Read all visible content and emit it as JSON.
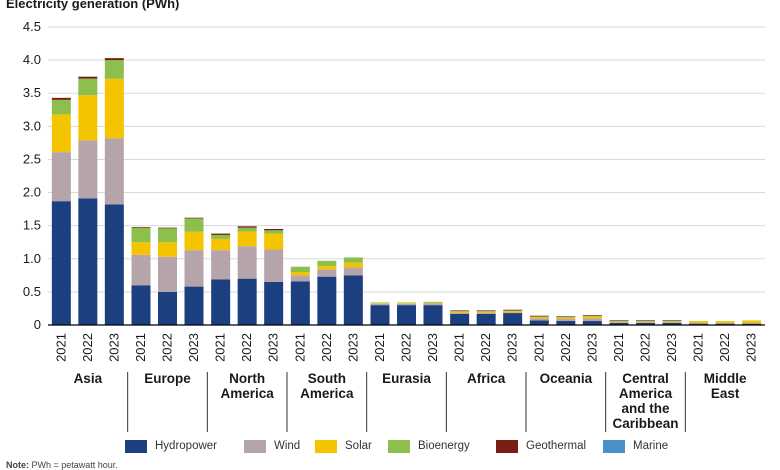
{
  "chart_data": {
    "type": "bar",
    "stacked": true,
    "title": "Electricity generation (PWh)",
    "ylim": [
      0,
      4.5
    ],
    "yticks": [
      "0",
      "0.5",
      "1.0",
      "1.5",
      "2.0",
      "2.5",
      "3.0",
      "3.5",
      "4.0",
      "4.5"
    ],
    "grid": true,
    "legend_position": "bottom",
    "groups": [
      {
        "name": "Asia",
        "years": [
          "2021",
          "2022",
          "2023"
        ]
      },
      {
        "name": "Europe",
        "years": [
          "2021",
          "2022",
          "2023"
        ]
      },
      {
        "name": "North America",
        "years": [
          "2021",
          "2022",
          "2023"
        ]
      },
      {
        "name": "South America",
        "years": [
          "2021",
          "2022",
          "2023"
        ]
      },
      {
        "name": "Eurasia",
        "years": [
          "2021",
          "2022",
          "2023"
        ]
      },
      {
        "name": "Africa",
        "years": [
          "2021",
          "2022",
          "2023"
        ]
      },
      {
        "name": "Oceania",
        "years": [
          "2021",
          "2022",
          "2023"
        ]
      },
      {
        "name": "Central America and the Caribbean",
        "years": [
          "2021",
          "2022",
          "2023"
        ]
      },
      {
        "name": "Middle East",
        "years": [
          "2021",
          "2022",
          "2023"
        ]
      }
    ],
    "group_label_lines": [
      [
        "Asia"
      ],
      [
        "Europe"
      ],
      [
        "North",
        "America"
      ],
      [
        "South",
        "America"
      ],
      [
        "Eurasia"
      ],
      [
        "Africa"
      ],
      [
        "Oceania"
      ],
      [
        "Central",
        "America",
        "and the",
        "Caribbean"
      ],
      [
        "Middle",
        "East"
      ]
    ],
    "series": [
      {
        "name": "Hydropower",
        "color": "#1b3f7f",
        "values": [
          1.87,
          1.91,
          1.82,
          0.6,
          0.5,
          0.58,
          0.69,
          0.7,
          0.65,
          0.66,
          0.73,
          0.75,
          0.3,
          0.3,
          0.3,
          0.17,
          0.17,
          0.18,
          0.07,
          0.06,
          0.06,
          0.03,
          0.03,
          0.03,
          0.02,
          0.02,
          0.02
        ]
      },
      {
        "name": "Wind",
        "color": "#b5a5aa",
        "values": [
          0.74,
          0.88,
          1.0,
          0.46,
          0.53,
          0.55,
          0.44,
          0.49,
          0.49,
          0.09,
          0.11,
          0.12,
          0.02,
          0.02,
          0.03,
          0.01,
          0.01,
          0.01,
          0.03,
          0.03,
          0.04,
          0.01,
          0.01,
          0.01,
          0.01,
          0.01,
          0.01
        ]
      },
      {
        "name": "Solar",
        "color": "#f5c400",
        "values": [
          0.57,
          0.68,
          0.9,
          0.19,
          0.22,
          0.28,
          0.17,
          0.22,
          0.24,
          0.05,
          0.05,
          0.07,
          0.01,
          0.01,
          0.01,
          0.02,
          0.02,
          0.02,
          0.02,
          0.02,
          0.03,
          0.01,
          0.01,
          0.01,
          0.03,
          0.03,
          0.04
        ]
      },
      {
        "name": "Bioenergy",
        "color": "#8cbf4c",
        "values": [
          0.22,
          0.25,
          0.28,
          0.22,
          0.21,
          0.2,
          0.06,
          0.06,
          0.05,
          0.08,
          0.08,
          0.08,
          0.01,
          0.01,
          0.01,
          0.01,
          0.01,
          0.01,
          0.01,
          0.01,
          0.01,
          0.01,
          0.01,
          0.01,
          0.0,
          0.0,
          0.0
        ]
      },
      {
        "name": "Geothermal",
        "color": "#7a1d14",
        "values": [
          0.03,
          0.03,
          0.03,
          0.01,
          0.01,
          0.01,
          0.02,
          0.02,
          0.02,
          0.0,
          0.0,
          0.0,
          0.0,
          0.0,
          0.0,
          0.01,
          0.01,
          0.01,
          0.01,
          0.01,
          0.01,
          0.01,
          0.01,
          0.01,
          0.0,
          0.0,
          0.0
        ]
      },
      {
        "name": "Marine",
        "color": "#4a90c9",
        "values": [
          0.0,
          0.0,
          0.0,
          0.0,
          0.0,
          0.0,
          0.0,
          0.0,
          0.0,
          0.0,
          0.0,
          0.0,
          0.0,
          0.0,
          0.0,
          0.0,
          0.0,
          0.0,
          0.0,
          0.0,
          0.0,
          0.0,
          0.0,
          0.0,
          0.0,
          0.0,
          0.0
        ]
      }
    ]
  },
  "note": {
    "label": "Note:",
    "text": " PWh = petawatt hour."
  }
}
